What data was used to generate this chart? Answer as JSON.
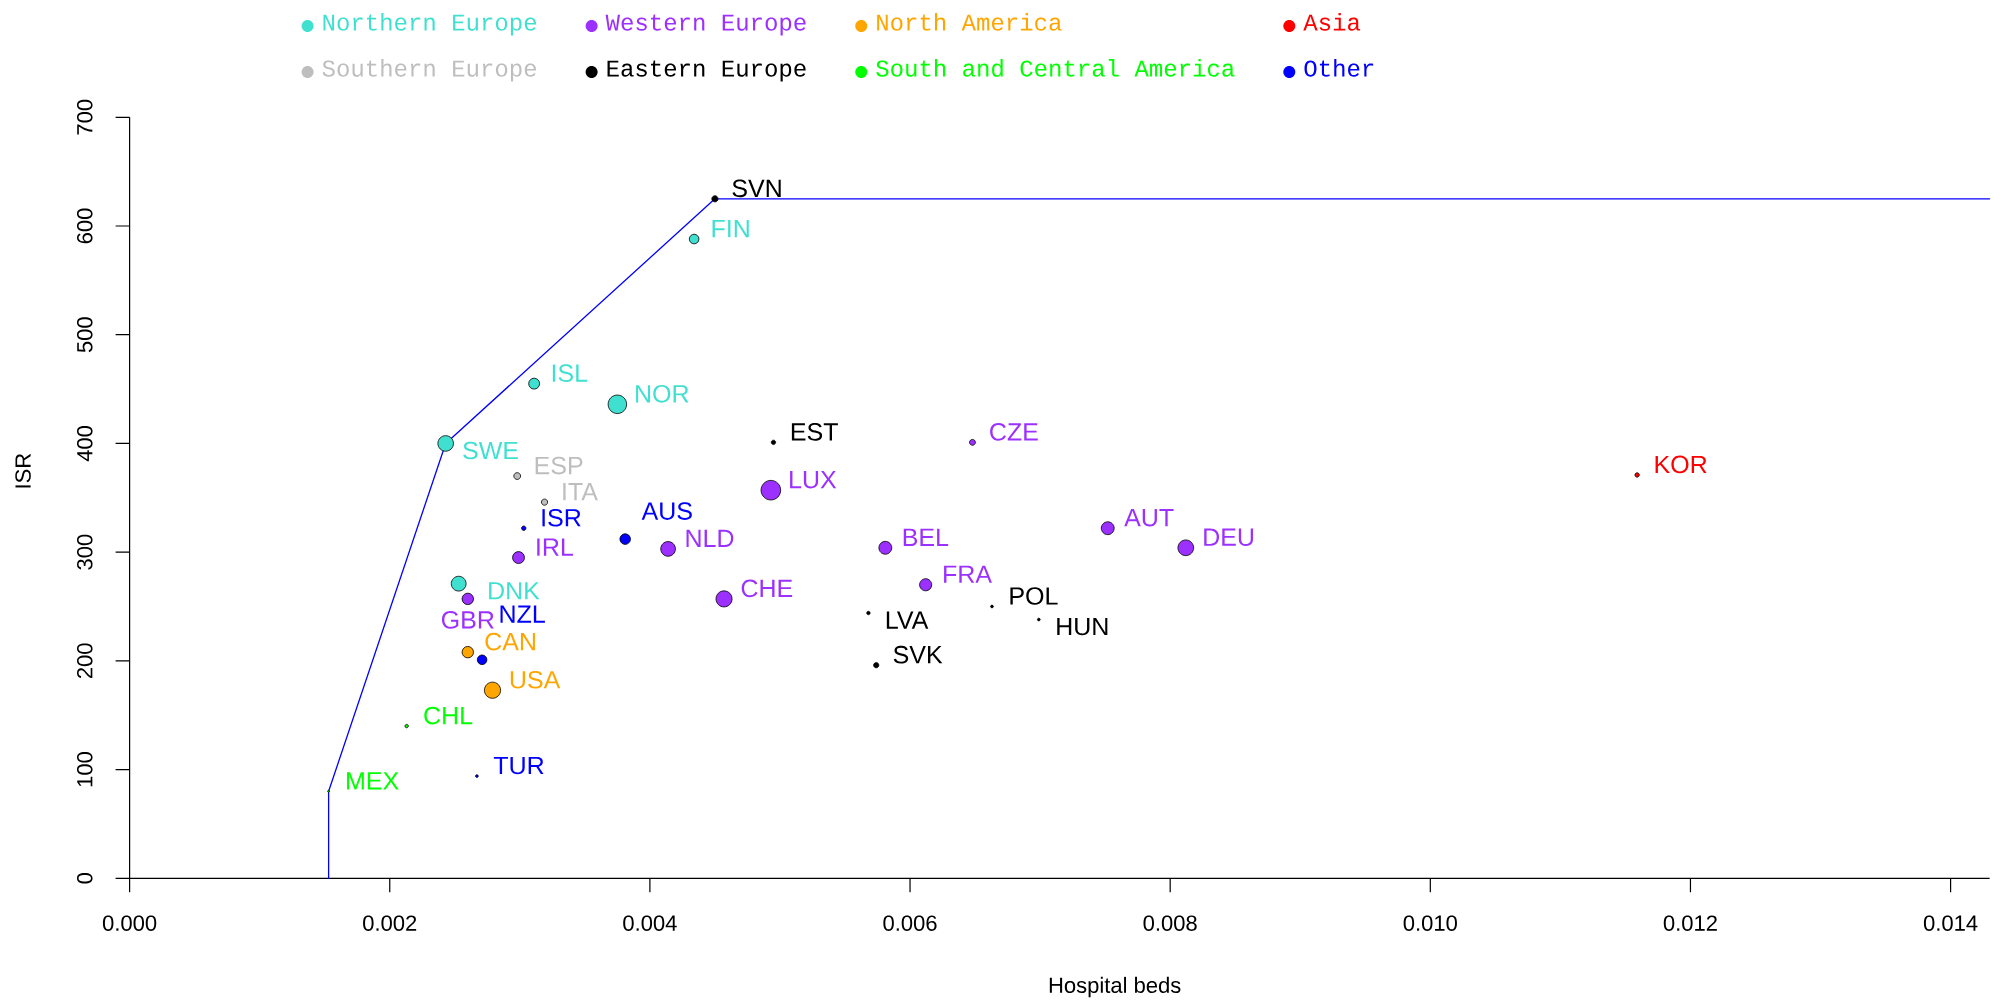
{
  "chart_data": {
    "type": "bubble",
    "xlabel": "Hospital beds",
    "ylabel": "ISR",
    "xlim": [
      0,
      0.0143
    ],
    "ylim": [
      0,
      700
    ],
    "xticks": [
      {
        "value": 0,
        "label": "0.000"
      },
      {
        "value": 0.002,
        "label": "0.002"
      },
      {
        "value": 0.004,
        "label": "0.004"
      },
      {
        "value": 0.006,
        "label": "0.006"
      },
      {
        "value": 0.008,
        "label": "0.008"
      },
      {
        "value": 0.01,
        "label": "0.010"
      },
      {
        "value": 0.012,
        "label": "0.012"
      },
      {
        "value": 0.014,
        "label": "0.014"
      }
    ],
    "yticks": [
      0,
      100,
      200,
      300,
      400,
      500,
      600,
      700
    ],
    "legend": "top",
    "series": [
      {
        "type": "line",
        "color": "#0000ff",
        "x": [
          0.00153,
          0.00153,
          0.00243,
          0.0045,
          0.0143
        ],
        "values": [
          0,
          80,
          400,
          625,
          625
        ]
      },
      {
        "name": "Northern Europe",
        "color": "#40e0d0",
        "x": [
          0.00243,
          0.00311,
          0.00375,
          0.00434,
          0.00253
        ],
        "values": [
          400,
          455,
          436,
          588,
          271
        ],
        "sizes": [
          0.63,
          0.31,
          0.89,
          0.24,
          0.57
        ]
      },
      {
        "name": "Southern Europe",
        "color": "#bebebe",
        "x": [
          0.00298,
          0.00319
        ],
        "values": [
          370,
          346
        ],
        "sizes": [
          0.12,
          0.1
        ]
      },
      {
        "name": "Western Europe",
        "color": "#9b30ff",
        "x": [
          0.00493,
          0.00414,
          0.00457,
          0.00581,
          0.00752,
          0.00812,
          0.00612,
          0.00299,
          0.0026,
          0.00648
        ],
        "values": [
          357,
          303,
          257,
          304,
          322,
          304,
          270,
          295,
          257,
          401
        ],
        "sizes": [
          1,
          0.56,
          0.67,
          0.43,
          0.43,
          0.64,
          0.38,
          0.37,
          0.34,
          0.09
        ]
      },
      {
        "name": "Eastern Europe",
        "color": "#000000",
        "x": [
          0.0045,
          0.00495,
          0.00568,
          0.00663,
          0.00699,
          0.00574
        ],
        "values": [
          625,
          401,
          244,
          250,
          238,
          196
        ],
        "sizes": [
          0.1,
          0.05,
          0.03,
          0.02,
          0.02,
          0.07
        ]
      },
      {
        "name": "North America",
        "color": "#ffa500",
        "x": [
          0.0026,
          0.00279
        ],
        "values": [
          208,
          173
        ],
        "sizes": [
          0.34,
          0.68
        ]
      },
      {
        "name": "South and Central America",
        "color": "#00ff00",
        "x": [
          0.00213,
          0.00153
        ],
        "values": [
          140,
          80
        ],
        "sizes": [
          0.03,
          0.01
        ]
      },
      {
        "name": "Asia",
        "color": "#ff0000",
        "x": [
          0.01159
        ],
        "values": [
          371
        ],
        "sizes": [
          0.05
        ]
      },
      {
        "name": "Other",
        "color": "#0000ff",
        "x": [
          0.00303,
          0.00381,
          0.00271,
          0.00267
        ],
        "values": [
          322,
          312,
          201,
          94
        ],
        "sizes": [
          0.05,
          0.29,
          0.24,
          0.02
        ]
      }
    ],
    "annotations": [
      {
        "text": "SWE",
        "x": 0.00243,
        "y": 400
      },
      {
        "text": "ISL",
        "x": 0.00311,
        "y": 455
      },
      {
        "text": "NOR",
        "x": 0.00375,
        "y": 436
      },
      {
        "text": "FIN",
        "x": 0.00434,
        "y": 588
      },
      {
        "text": "DNK",
        "x": 0.00253,
        "y": 271
      },
      {
        "text": "ESP",
        "x": 0.00298,
        "y": 370
      },
      {
        "text": "ITA",
        "x": 0.00319,
        "y": 346
      },
      {
        "text": "LUX",
        "x": 0.00493,
        "y": 357
      },
      {
        "text": "NLD",
        "x": 0.00414,
        "y": 303
      },
      {
        "text": "CHE",
        "x": 0.00457,
        "y": 257
      },
      {
        "text": "BEL",
        "x": 0.00581,
        "y": 304
      },
      {
        "text": "AUT",
        "x": 0.00752,
        "y": 322
      },
      {
        "text": "DEU",
        "x": 0.00812,
        "y": 304
      },
      {
        "text": "FRA",
        "x": 0.00612,
        "y": 270
      },
      {
        "text": "IRL",
        "x": 0.00299,
        "y": 295
      },
      {
        "text": "GBR",
        "x": 0.0026,
        "y": 257
      },
      {
        "text": "CZE",
        "x": 0.00648,
        "y": 401
      },
      {
        "text": "SVN",
        "x": 0.0045,
        "y": 625
      },
      {
        "text": "EST",
        "x": 0.00495,
        "y": 401
      },
      {
        "text": "LVA",
        "x": 0.00568,
        "y": 244
      },
      {
        "text": "POL",
        "x": 0.00663,
        "y": 250
      },
      {
        "text": "HUN",
        "x": 0.00699,
        "y": 238
      },
      {
        "text": "SVK",
        "x": 0.00574,
        "y": 196
      },
      {
        "text": "CAN",
        "x": 0.0026,
        "y": 208
      },
      {
        "text": "USA",
        "x": 0.00279,
        "y": 173
      },
      {
        "text": "CHL",
        "x": 0.00213,
        "y": 140
      },
      {
        "text": "MEX",
        "x": 0.00153,
        "y": 80
      },
      {
        "text": "KOR",
        "x": 0.01159,
        "y": 371
      },
      {
        "text": "ISR",
        "x": 0.00303,
        "y": 322
      },
      {
        "text": "AUS",
        "x": 0.00381,
        "y": 312
      },
      {
        "text": "NZL",
        "x": 0.00271,
        "y": 201
      },
      {
        "text": "TUR",
        "x": 0.00267,
        "y": 94
      }
    ]
  }
}
